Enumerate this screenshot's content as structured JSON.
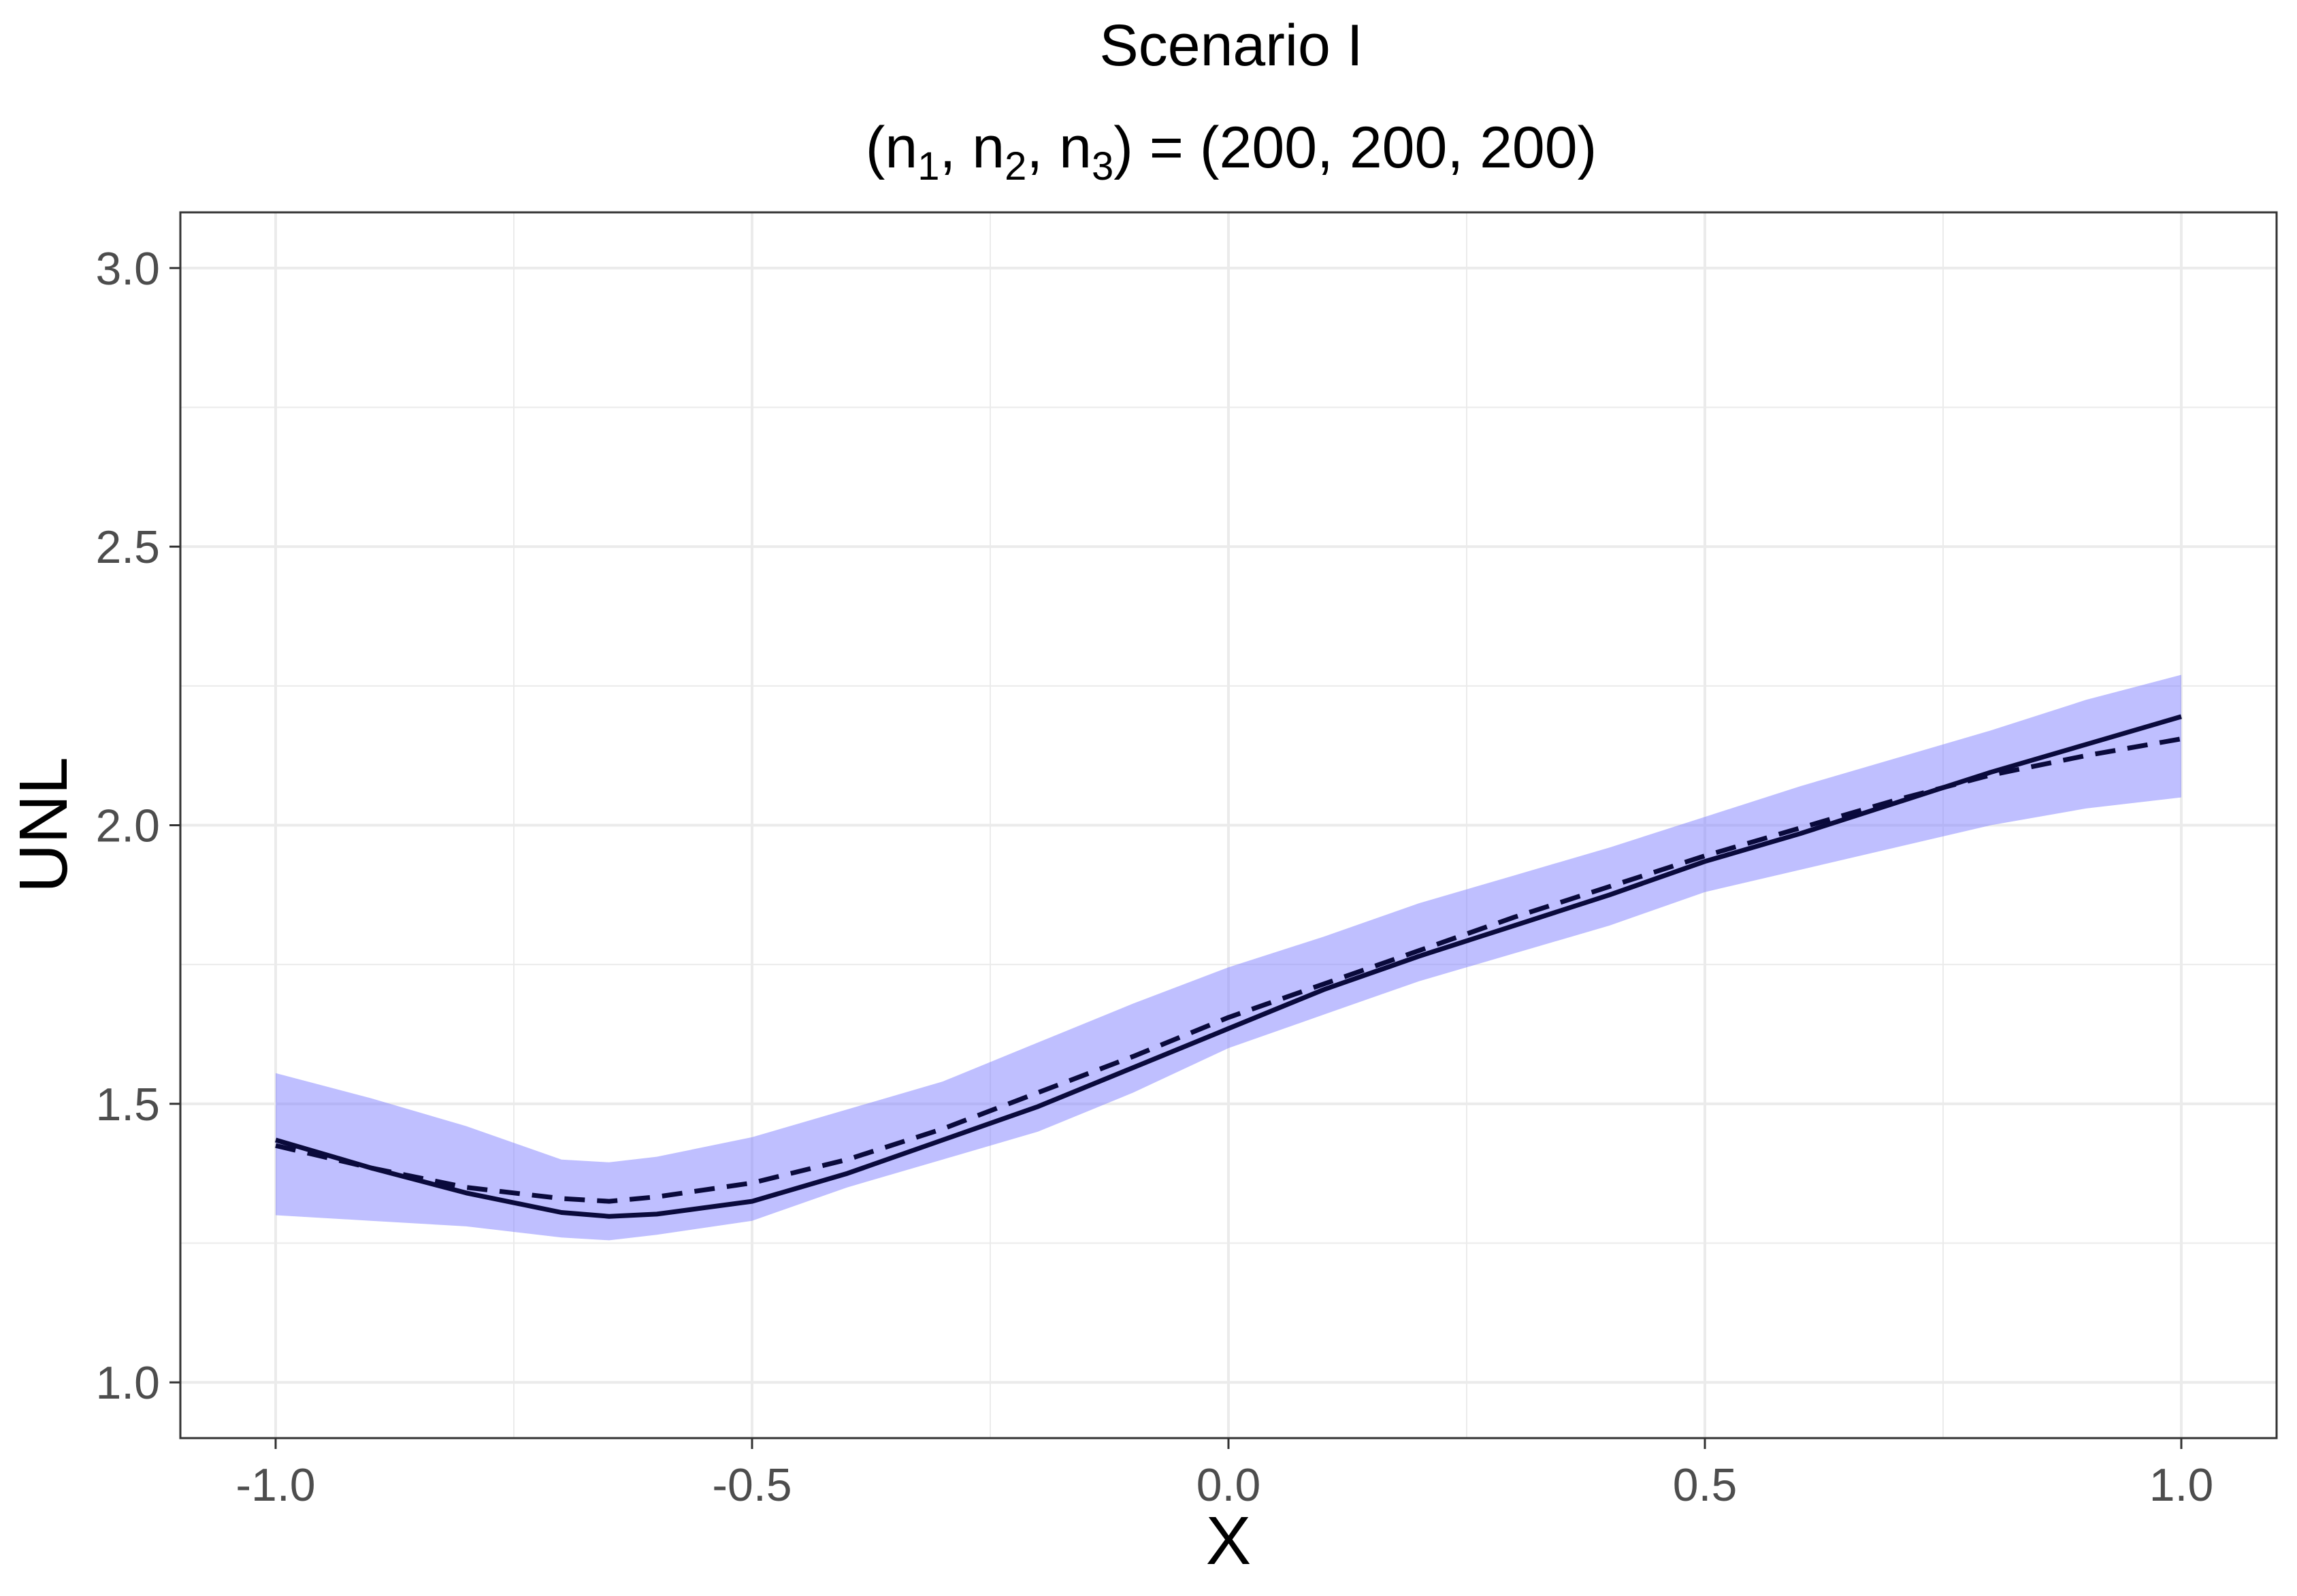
{
  "chart_data": {
    "type": "line",
    "title": "Scenario I",
    "subtitle": {
      "prefix": "(n",
      "sub1": "1",
      "sep1": ", n",
      "sub2": "2",
      "sep2": ", n",
      "sub3": "3",
      "suffix": ") = (200, 200, 200)"
    },
    "xlabel": "X",
    "ylabel": "UNL",
    "xlim": [
      -1.1,
      1.1
    ],
    "ylim": [
      0.9,
      3.1
    ],
    "x_ticks": [
      -1.0,
      -0.5,
      0.0,
      0.5,
      1.0
    ],
    "x_tick_labels": [
      "-1.0",
      "-0.5",
      "0.0",
      "0.5",
      "1.0"
    ],
    "y_ticks": [
      1.0,
      1.5,
      2.0,
      2.5,
      3.0
    ],
    "y_tick_labels": [
      "1.0",
      "1.5",
      "2.0",
      "2.5",
      "3.0"
    ],
    "x_minor_ticks": [
      -0.75,
      -0.25,
      0.25,
      0.75
    ],
    "y_minor_ticks": [
      1.25,
      1.75,
      2.25,
      2.75
    ],
    "grid": true,
    "legend": "none",
    "colors": {
      "band": "#8080ff",
      "line": "#0a0a3c",
      "grid": "#ebebeb",
      "panel_border": "#333333",
      "tick_text": "#4d4d4d"
    },
    "x": [
      -1.0,
      -0.9,
      -0.8,
      -0.7,
      -0.65,
      -0.6,
      -0.5,
      -0.4,
      -0.3,
      -0.2,
      -0.1,
      0.0,
      0.1,
      0.2,
      0.3,
      0.4,
      0.5,
      0.6,
      0.7,
      0.8,
      0.9,
      1.0
    ],
    "band": {
      "lower": [
        1.3,
        1.29,
        1.28,
        1.26,
        1.255,
        1.265,
        1.29,
        1.35,
        1.4,
        1.45,
        1.52,
        1.6,
        1.66,
        1.72,
        1.77,
        1.82,
        1.88,
        1.92,
        1.96,
        2.0,
        2.03,
        2.05
      ],
      "upper": [
        1.555,
        1.51,
        1.46,
        1.4,
        1.395,
        1.405,
        1.44,
        1.49,
        1.54,
        1.61,
        1.68,
        1.745,
        1.8,
        1.86,
        1.91,
        1.96,
        2.015,
        2.07,
        2.12,
        2.17,
        2.225,
        2.27
      ]
    },
    "series": [
      {
        "style": "solid",
        "values": [
          1.435,
          1.385,
          1.34,
          1.305,
          1.298,
          1.302,
          1.325,
          1.375,
          1.435,
          1.495,
          1.565,
          1.635,
          1.705,
          1.765,
          1.82,
          1.875,
          1.935,
          1.985,
          2.04,
          2.095,
          2.145,
          2.195
        ]
      },
      {
        "style": "dashed",
        "values": [
          1.425,
          1.385,
          1.35,
          1.33,
          1.325,
          1.333,
          1.358,
          1.4,
          1.455,
          1.52,
          1.585,
          1.655,
          1.715,
          1.775,
          1.835,
          1.89,
          1.945,
          1.995,
          2.045,
          2.09,
          2.125,
          2.155
        ]
      }
    ]
  }
}
